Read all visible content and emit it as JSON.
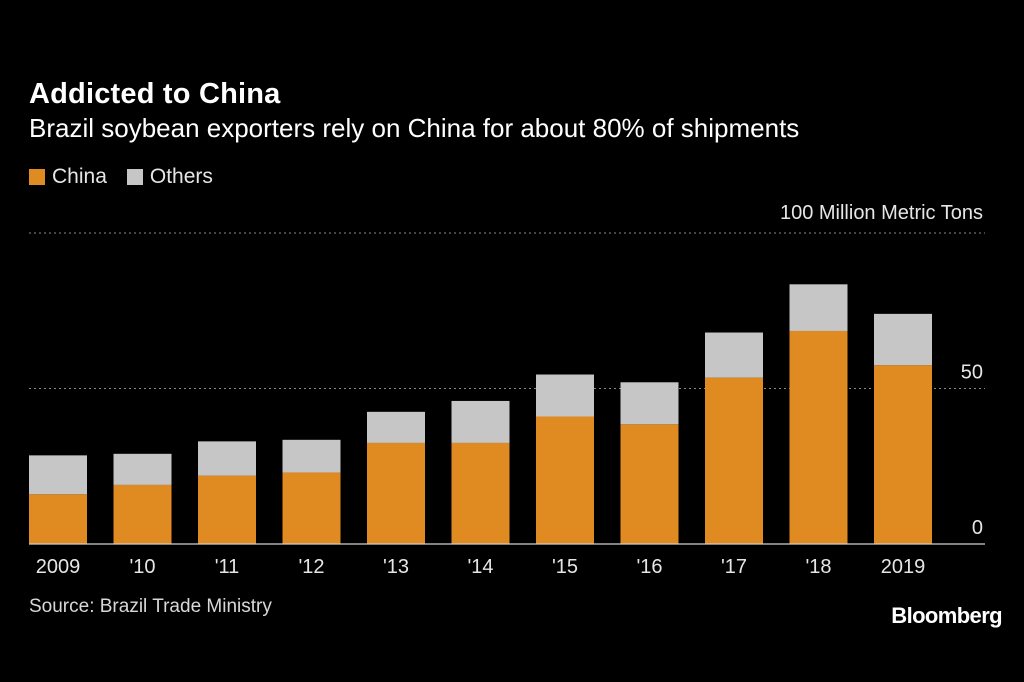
{
  "header": {
    "title": "Addicted to China",
    "subtitle": "Brazil soybean exporters rely on China for about 80% of shipments"
  },
  "colors": {
    "background": "#000000",
    "china": "#e08a22",
    "others": "#c6c6c6",
    "grid": "#8a8a8a",
    "axis": "#cfcfcf"
  },
  "chart_data": {
    "type": "bar",
    "stacked": true,
    "categories": [
      "2009",
      "'10",
      "'11",
      "'12",
      "'13",
      "'14",
      "'15",
      "'16",
      "'17",
      "'18",
      "2019"
    ],
    "series": [
      {
        "name": "China",
        "color": "#e08a22",
        "values": [
          16,
          19,
          22,
          23,
          32.5,
          32.5,
          41,
          38.5,
          53.5,
          68.5,
          57.5
        ]
      },
      {
        "name": "Others",
        "color": "#c6c6c6",
        "values": [
          12.5,
          10,
          11,
          10.5,
          10,
          13.5,
          13.5,
          13.5,
          14.5,
          15,
          16.5
        ]
      }
    ],
    "ylabel": "100 Million Metric Tons",
    "ylim": [
      0,
      100
    ],
    "yticks": [
      {
        "value": 0,
        "label": "0"
      },
      {
        "value": 50,
        "label": "50"
      },
      {
        "value": 100,
        "label": "100"
      }
    ],
    "grid": true,
    "gridlines_at": [
      50,
      100
    ],
    "legend": "top-left"
  },
  "footer": {
    "source": "Source: Brazil Trade Ministry",
    "brand": "Bloomberg"
  }
}
